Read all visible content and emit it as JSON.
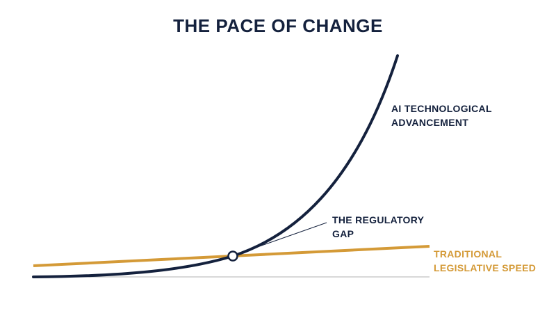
{
  "title": "THE PACE OF CHANGE",
  "colors": {
    "tech_curve": "#14213d",
    "legislative_line": "#d49a37",
    "baseline": "#cccccc",
    "background": "#ffffff"
  },
  "labels": {
    "ai_tech": [
      "AI TECHNOLOGICAL",
      "ADVANCEMENT"
    ],
    "regulatory_gap": [
      "THE REGULATORY",
      "GAP"
    ],
    "legislative": [
      "TRADITIONAL",
      "LEGISLATIVE SPEED"
    ]
  }
}
